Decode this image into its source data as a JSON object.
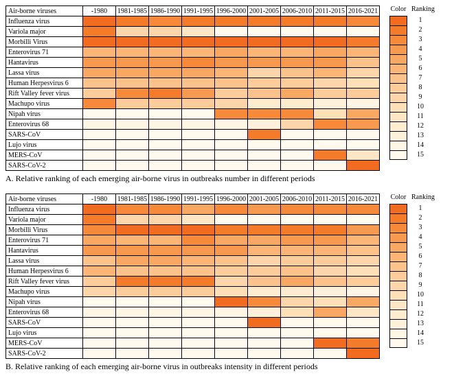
{
  "palette": {
    "rank_colors": [
      "#f16c20",
      "#f47b2a",
      "#f68a3a",
      "#f7994e",
      "#f9a863",
      "#fab577",
      "#fbc28b",
      "#fccc9b",
      "#fcd6aa",
      "#fddfb8",
      "#fde6c5",
      "#feecd1",
      "#fef1dc",
      "#fef5e5",
      "#fff9ee"
    ],
    "background": "#ffffff",
    "border": "#000000"
  },
  "periods": [
    "-1980",
    "1981-1985",
    "1986-1990",
    "1991-1995",
    "1996-2000",
    "2001-2005",
    "2006-2010",
    "2011-2015",
    "2016-2021"
  ],
  "viruses": [
    "Influenza virus",
    "Variola major",
    "Morbilli Virus",
    "Enterovirus 71",
    "Hantavirus",
    "Lassa virus",
    "Human Herpesvirus 6",
    "Rift Valley fever virus",
    "Machupo virus",
    "Nipah virus",
    "Enterovirus 68",
    "SARS-CoV",
    "Lujo virus",
    "MERS-CoV",
    "SARS-CoV-2"
  ],
  "legend": {
    "color_label": "Color",
    "ranking_label": "Ranking",
    "ranks": [
      1,
      2,
      3,
      4,
      5,
      6,
      7,
      8,
      9,
      10,
      11,
      12,
      13,
      14,
      15
    ]
  },
  "header_label": "Air-borne viruses",
  "panelA": {
    "caption": "A. Relative ranking of each emerging air-borne virus in outbreaks number in different periods",
    "cells": [
      [
        1,
        2,
        3,
        2,
        2,
        2,
        2,
        2,
        3
      ],
      [
        2,
        9,
        9,
        11,
        15,
        15,
        15,
        15,
        15
      ],
      [
        null,
        1,
        1,
        1,
        1,
        1,
        1,
        1,
        2
      ],
      [
        6,
        6,
        6,
        6,
        5,
        6,
        6,
        5,
        6
      ],
      [
        4,
        4,
        4,
        3,
        4,
        4,
        4,
        4,
        7
      ],
      [
        5,
        5,
        5,
        5,
        6,
        9,
        7,
        6,
        9
      ],
      [
        7,
        7,
        7,
        7,
        7,
        8,
        8,
        9,
        10
      ],
      [
        8,
        3,
        2,
        4,
        8,
        7,
        5,
        8,
        8
      ],
      [
        3,
        8,
        8,
        8,
        9,
        12,
        12,
        13,
        14
      ],
      [
        15,
        15,
        15,
        15,
        3,
        3,
        3,
        10,
        5
      ],
      [
        14,
        14,
        14,
        14,
        14,
        13,
        9,
        3,
        4
      ],
      [
        15,
        15,
        15,
        15,
        15,
        2,
        15,
        15,
        15
      ],
      [
        15,
        15,
        15,
        15,
        15,
        15,
        15,
        15,
        15
      ],
      [
        15,
        15,
        15,
        15,
        15,
        15,
        15,
        2,
        11
      ],
      [
        15,
        15,
        15,
        15,
        15,
        15,
        15,
        15,
        1
      ]
    ]
  },
  "panelB": {
    "caption": "B. Relative ranking of each emerging air-borne virus in outbreaks intensity in different periods",
    "cells": [
      [
        1,
        3,
        3,
        5,
        3,
        4,
        3,
        3,
        3
      ],
      [
        2,
        9,
        9,
        11,
        15,
        15,
        15,
        15,
        15
      ],
      [
        3,
        1,
        1,
        1,
        2,
        2,
        2,
        2,
        4
      ],
      [
        5,
        6,
        6,
        3,
        5,
        5,
        4,
        4,
        6
      ],
      [
        4,
        4,
        4,
        4,
        4,
        6,
        6,
        6,
        7
      ],
      [
        7,
        5,
        5,
        6,
        7,
        9,
        8,
        8,
        9
      ],
      [
        6,
        7,
        7,
        7,
        8,
        8,
        7,
        9,
        10
      ],
      [
        8,
        2,
        2,
        2,
        9,
        7,
        5,
        7,
        8
      ],
      [
        9,
        8,
        8,
        8,
        10,
        12,
        12,
        13,
        14
      ],
      [
        15,
        15,
        15,
        15,
        1,
        3,
        9,
        10,
        5
      ],
      [
        14,
        14,
        14,
        14,
        14,
        13,
        10,
        5,
        11
      ],
      [
        15,
        15,
        15,
        15,
        15,
        1,
        15,
        15,
        15
      ],
      [
        15,
        15,
        15,
        15,
        15,
        15,
        15,
        15,
        15
      ],
      [
        15,
        15,
        15,
        15,
        15,
        15,
        15,
        1,
        2
      ],
      [
        15,
        15,
        15,
        15,
        15,
        15,
        15,
        15,
        1
      ]
    ]
  }
}
